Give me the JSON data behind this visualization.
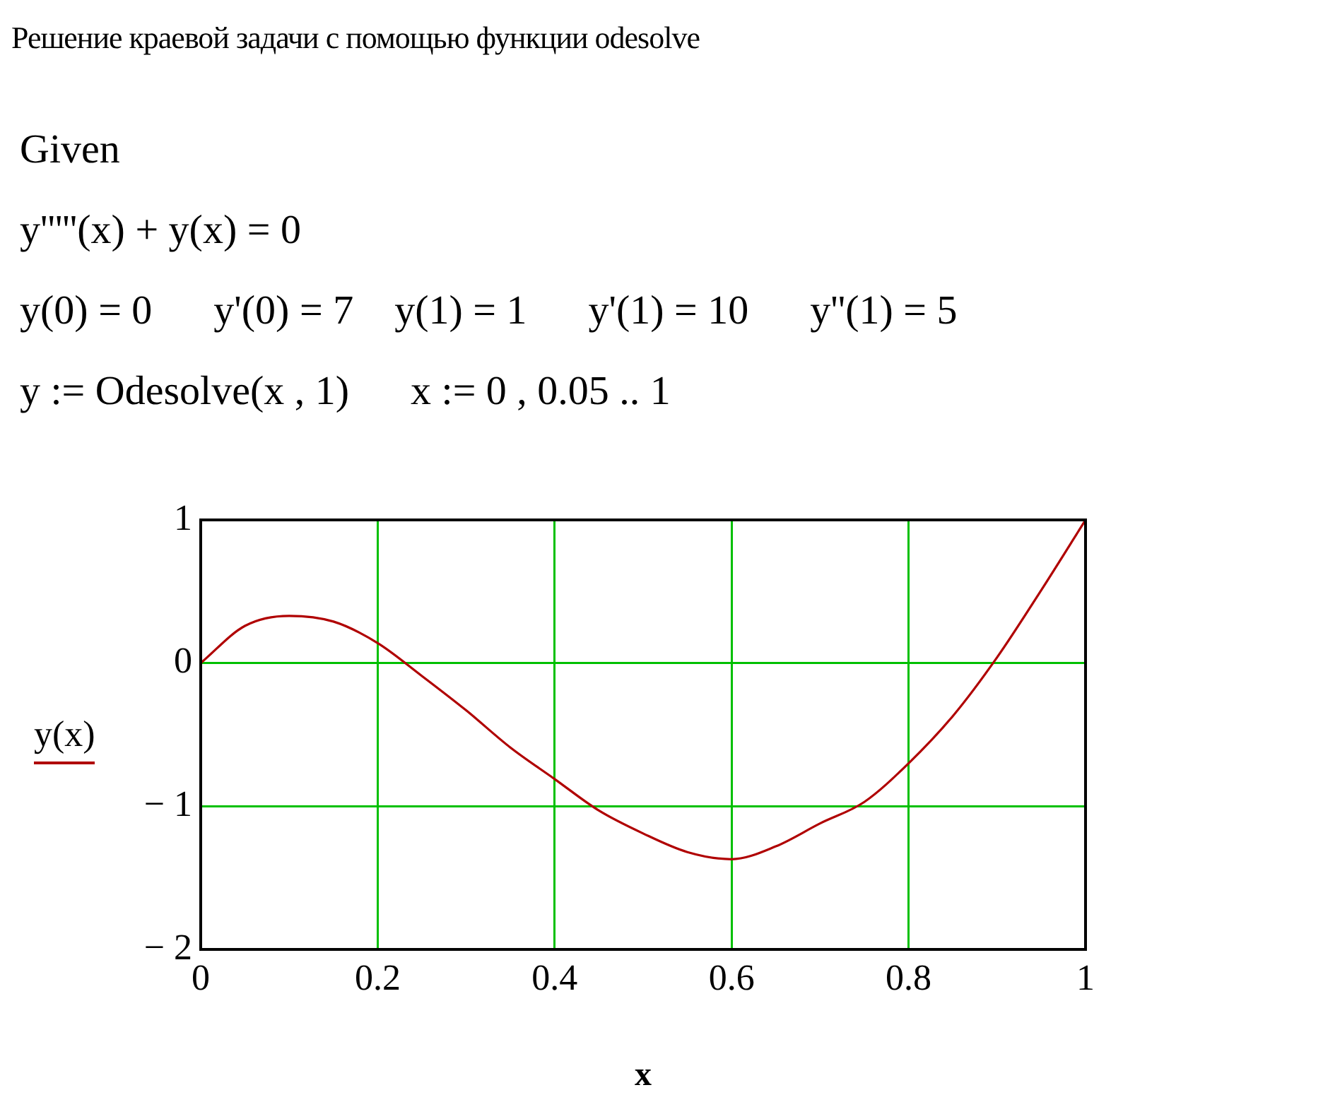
{
  "chart_data": {
    "type": "line",
    "title": "Решение краевой задачи с помощью функции odesolve",
    "annotations": [
      "Given",
      "y'''''(x) + y(x) = 0",
      "y(0) = 0      y'(0) = 7    y(1) = 1      y'(1) = 10      y''(1) = 5",
      "y := Odesolve(x , 1)      x := 0 , 0.05 .. 1"
    ],
    "xlabel": "x",
    "ylabel": "y(x)",
    "x": [
      0,
      0.05,
      0.1,
      0.15,
      0.2,
      0.25,
      0.3,
      0.35,
      0.4,
      0.45,
      0.5,
      0.55,
      0.6,
      0.65,
      0.7,
      0.75,
      0.8,
      0.85,
      0.9,
      0.95,
      1
    ],
    "series": [
      {
        "color": "#b00000",
        "values": [
          0,
          0.26,
          0.33,
          0.29,
          0.14,
          -0.09,
          -0.33,
          -0.59,
          -0.81,
          -1.03,
          -1.19,
          -1.32,
          -1.37,
          -1.28,
          -1.12,
          -0.97,
          -0.7,
          -0.37,
          0.04,
          0.51,
          1
        ]
      }
    ],
    "xlim": [
      0,
      1
    ],
    "xticks": [
      0,
      0.2,
      0.4,
      0.6,
      0.8,
      1
    ],
    "ylim": [
      -2,
      1
    ],
    "yticks": [
      {
        "value": -2,
        "label": "− 2"
      },
      {
        "value": -1,
        "label": "− 1"
      },
      0,
      1
    ],
    "grid": true,
    "marker": "none",
    "line_style": "solid"
  }
}
